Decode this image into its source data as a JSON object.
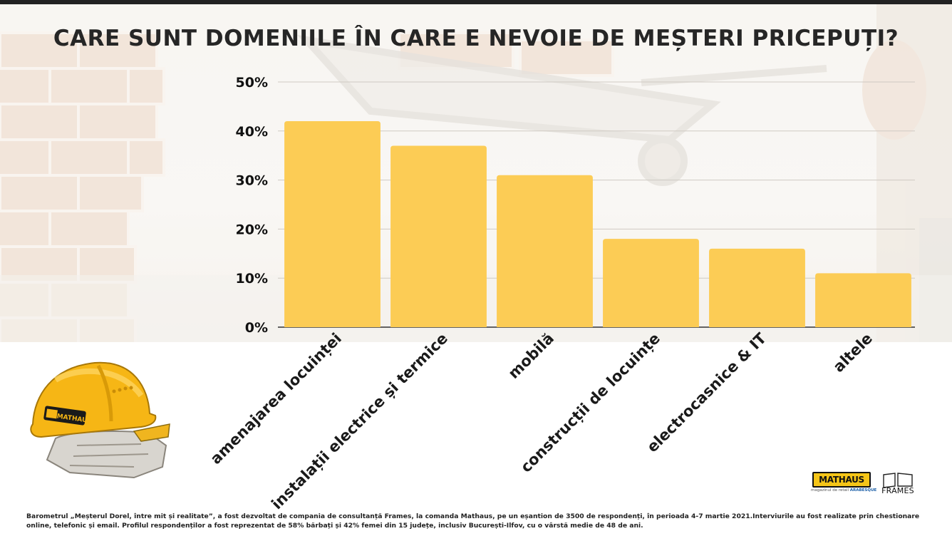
{
  "title": "CARE SUNT DOMENIILE ÎN CARE E NEVOIE DE MEȘTERI PRICEPUȚI?",
  "colors": {
    "bar": "#fccc55",
    "grid": "#cfcac3",
    "axis": "#333333",
    "text": "#111111"
  },
  "chart_data": {
    "type": "bar",
    "title": "CARE SUNT DOMENIILE ÎN CARE E NEVOIE DE MEȘTERI PRICEPUȚI?",
    "categories": [
      "amenajarea locuinței",
      "instalații electrice și termice",
      "mobilă",
      "construcții de locuințe",
      "electrocasnice & IT",
      "altele"
    ],
    "values": [
      42,
      37,
      31,
      18,
      16,
      11
    ],
    "unit": "%",
    "ylim": [
      0,
      50
    ],
    "yticks": [
      "0%",
      "10%",
      "20%",
      "30%",
      "40%",
      "50%"
    ],
    "ytick_values": [
      0,
      10,
      20,
      30,
      40,
      50
    ],
    "grid": true,
    "legend": "none",
    "xlabel": "",
    "ylabel": ""
  },
  "helmet_brand": "MATHAUS",
  "logos": {
    "mathaus": "MATHAUS",
    "mathaus_tagline": "magazinul de retail",
    "arabesque": "ARABESQUE",
    "frames": "FRAMES"
  },
  "footnote": "Barometrul „Meșterul Dorel, între mit și realitate”, a fost dezvoltat de compania de consultanță Frames, la comanda Mathaus, pe un eșantion de 3500 de respondenți, în perioada 4-7 martie 2021.Interviurile au fost realizate prin chestionare online, telefonic și email. Profilul respondenților a fost reprezentat de 58% bărbați și 42% femei din 15 județe, inclusiv București-Ilfov, cu o vârstă medie de 48 de ani."
}
